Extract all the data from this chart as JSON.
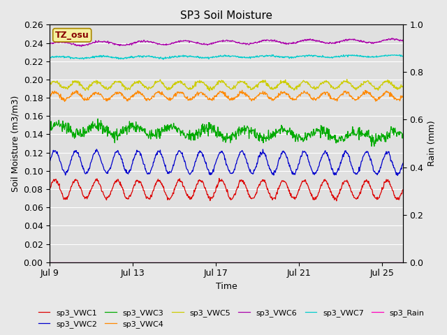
{
  "title": "SP3 Soil Moisture",
  "xlabel": "Time",
  "ylabel_left": "Soil Moisture (m3/m3)",
  "ylabel_right": "Rain (mm)",
  "n_days": 17,
  "start_day": 9,
  "ylim_left": [
    0.0,
    0.26
  ],
  "ylim_right": [
    0.0,
    1.0
  ],
  "tz_label": "TZ_osu",
  "x_ticks_labels": [
    "Jul 9",
    "Jul 13",
    "Jul 17",
    "Jul 21",
    "Jul 25"
  ],
  "x_ticks_days": [
    0,
    4,
    8,
    12,
    16
  ],
  "y_ticks_left": [
    0.0,
    0.02,
    0.04,
    0.06,
    0.08,
    0.1,
    0.12,
    0.14,
    0.16,
    0.18,
    0.2,
    0.22,
    0.24,
    0.26
  ],
  "y_ticks_right": [
    0.0,
    0.2,
    0.4,
    0.6,
    0.8,
    1.0
  ],
  "fig_bg_color": "#e8e8e8",
  "plot_bg_color": "#e0e0e0",
  "grid_color": "#ffffff",
  "legend": [
    {
      "label": "sp3_VWC1",
      "color": "#dd0000"
    },
    {
      "label": "sp3_VWC2",
      "color": "#0000cc"
    },
    {
      "label": "sp3_VWC3",
      "color": "#00aa00"
    },
    {
      "label": "sp3_VWC4",
      "color": "#ff8800"
    },
    {
      "label": "sp3_VWC5",
      "color": "#cccc00"
    },
    {
      "label": "sp3_VWC6",
      "color": "#aa00aa"
    },
    {
      "label": "sp3_VWC7",
      "color": "#00cccc"
    },
    {
      "label": "sp3_Rain",
      "color": "#ff00bb"
    }
  ],
  "series": {
    "sp3_VWC1": {
      "base": 0.08,
      "amp": 0.01,
      "period": 1.0,
      "noise": 0.001,
      "trend": -5e-05
    },
    "sp3_VWC2": {
      "base": 0.11,
      "amp": 0.012,
      "period": 1.0,
      "noise": 0.001,
      "trend": -0.0001
    },
    "sp3_VWC3": {
      "base": 0.146,
      "amp": 0.005,
      "period": 1.8,
      "noise": 0.003,
      "trend": -0.0005
    },
    "sp3_VWC4": {
      "base": 0.182,
      "amp": 0.004,
      "period": 1.0,
      "noise": 0.001,
      "trend": 0.0
    },
    "sp3_VWC5": {
      "base": 0.194,
      "amp": 0.004,
      "period": 1.0,
      "noise": 0.001,
      "trend": 0.0
    },
    "sp3_VWC6": {
      "base": 0.239,
      "amp": 0.002,
      "period": 2.0,
      "noise": 0.0005,
      "trend": 0.0002
    },
    "sp3_VWC7": {
      "base": 0.224,
      "amp": 0.001,
      "period": 2.0,
      "noise": 0.0005,
      "trend": 0.0001
    }
  },
  "figsize": [
    6.4,
    4.8
  ],
  "dpi": 100
}
